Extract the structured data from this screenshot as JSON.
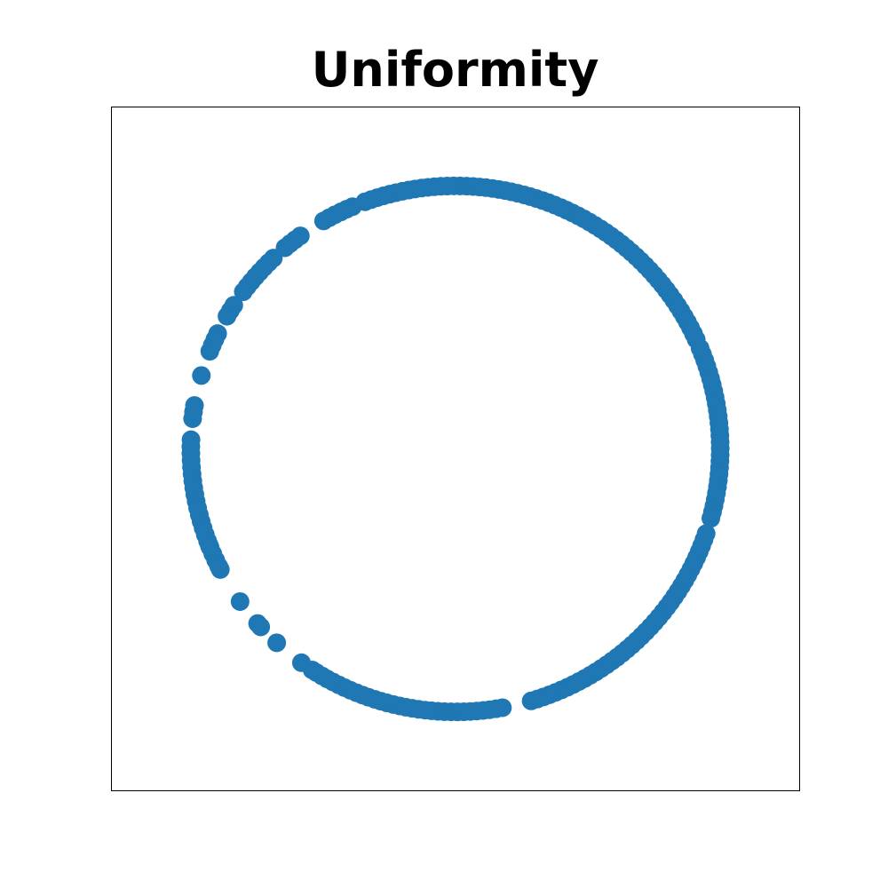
{
  "chart_data": {
    "type": "scatter",
    "title": "Uniformity",
    "xlabel": "",
    "ylabel": "",
    "xlim": [
      -1.3,
      1.3
    ],
    "ylim": [
      -1.3,
      1.3
    ],
    "grid": false,
    "ticks_visible": false,
    "series": [
      {
        "color": "#1f77b4",
        "marker": "circle",
        "angles_deg": [
          -158.5,
          -152.7,
          -144.5,
          -138.4,
          -137.4,
          -132.5,
          -125.6,
          -122.8,
          -121.7,
          -120.3,
          -119.0,
          -117.6,
          -116.2,
          -114.8,
          -113.4,
          -112.0,
          -110.6,
          -109.2,
          -107.8,
          -106.4,
          -105.0,
          -103.6,
          -102.2,
          -100.8,
          -99.4,
          -98.0,
          -96.6,
          -95.2,
          -93.8,
          -92.4,
          -91.0,
          -89.6,
          -88.2,
          -86.8,
          -85.4,
          -84.0,
          -82.6,
          -81.2,
          -79.8,
          -73.4,
          -72.0,
          -70.6,
          -69.2,
          -67.8,
          -66.4,
          -65.0,
          -63.6,
          -62.2,
          -60.8,
          -59.4,
          -58.0,
          -56.6,
          -55.2,
          -53.8,
          -52.4,
          -51.0,
          -49.6,
          -48.2,
          -46.8,
          -45.4,
          -44.0,
          -42.6,
          -41.2,
          -39.8,
          -38.4,
          -37.0,
          -35.6,
          -34.2,
          -32.8,
          -31.4,
          -30.0,
          -28.6,
          -27.2,
          -25.8,
          -24.4,
          -23.0,
          -21.6,
          -20.2,
          -18.8,
          -15.3,
          -13.9,
          -12.5,
          -11.1,
          -9.7,
          -8.3,
          -6.9,
          -5.5,
          -4.1,
          -2.7,
          -1.3,
          0.1,
          1.5,
          2.9,
          4.3,
          5.7,
          7.1,
          8.5,
          9.9,
          11.3,
          12.7,
          14.1,
          15.5,
          16.9,
          18.3,
          19.7,
          21.1,
          22.5,
          24.6,
          26.0,
          27.4,
          28.8,
          30.2,
          31.6,
          33.0,
          34.4,
          35.8,
          37.2,
          38.6,
          40.0,
          41.4,
          42.8,
          44.2,
          45.6,
          47.0,
          48.4,
          49.8,
          51.2,
          52.6,
          54.0,
          55.4,
          56.8,
          58.2,
          59.6,
          61.0,
          62.4,
          63.8,
          65.2,
          66.6,
          68.0,
          69.4,
          70.8,
          72.2,
          73.6,
          75.0,
          76.4,
          77.8,
          79.2,
          80.6,
          82.0,
          83.4,
          84.8,
          86.2,
          87.6,
          89.0,
          90.4,
          91.8,
          93.2,
          94.6,
          96.0,
          97.4,
          98.8,
          100.2,
          101.6,
          103.0,
          104.4,
          105.8,
          107.2,
          108.6,
          110.0,
          112.9,
          114.3,
          115.7,
          117.1,
          118.5,
          119.9,
          125.9,
          127.3,
          128.7,
          130.1,
          133.5,
          134.9,
          136.3,
          137.7,
          139.1,
          140.5,
          141.9,
          143.3,
          146.9,
          148.3,
          149.7,
          154.0,
          155.4,
          156.8,
          158.2,
          163.8,
          170.5,
          171.9,
          173.4,
          178.0,
          179.5,
          181.0,
          182.5,
          184.0,
          185.5,
          187.0,
          188.5,
          190.0,
          191.5,
          193.0,
          194.5,
          196.0,
          197.5,
          199.0,
          200.5,
          202.0,
          203.5,
          205.0,
          206.5
        ]
      }
    ]
  }
}
